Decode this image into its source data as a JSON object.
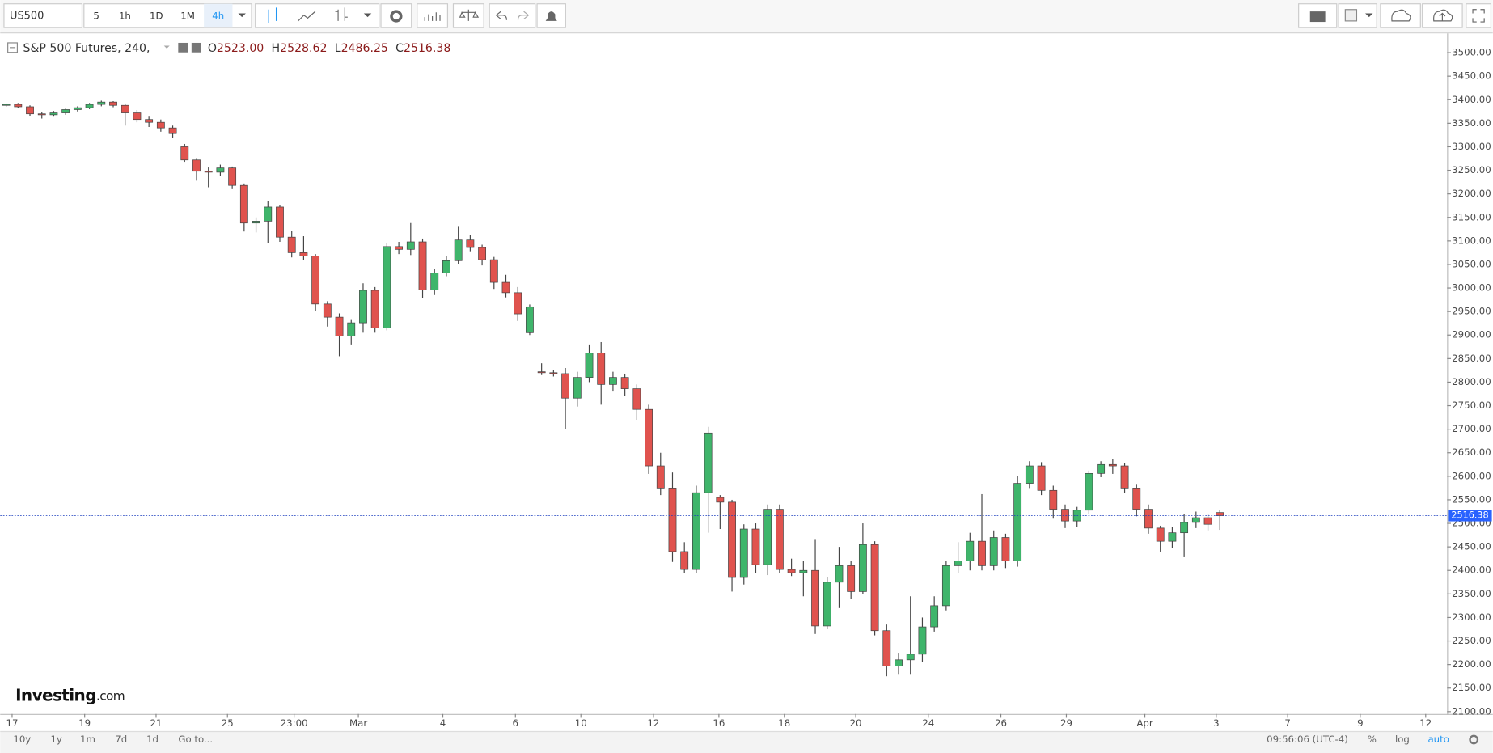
{
  "chart_data": {
    "type": "candlestick",
    "symbol": "US500",
    "intervals": [
      "5",
      "1h",
      "1D",
      "1M",
      "4h"
    ],
    "title": "S&P 500 Futures, 240,",
    "ohlc_keys": [
      "O",
      "H",
      "L",
      "C"
    ],
    "ohlc_labels": [
      "2523.00",
      "2528.62",
      "2486.25",
      "2516.38"
    ],
    "watermark": [
      "Investing",
      ".com"
    ],
    "ranges": [
      "10y",
      "1y",
      "1m",
      "7d",
      "1d",
      "Go to..."
    ],
    "clock": "09:56:06 (UTC-4)",
    "scale_options": [
      "%",
      "log",
      "auto"
    ],
    "up_color": "#3fb56b",
    "down_color": "#e0534e",
    "ylim": [
      2095,
      3541
    ],
    "yticks": [
      {
        "value": 2100,
        "label": "2100.00"
      },
      {
        "value": 2150,
        "label": "2150.00"
      },
      {
        "value": 2200,
        "label": "2200.00"
      },
      {
        "value": 2250,
        "label": "2250.00"
      },
      {
        "value": 2300,
        "label": "2300.00"
      },
      {
        "value": 2350,
        "label": "2350.00"
      },
      {
        "value": 2400,
        "label": "2400.00"
      },
      {
        "value": 2450,
        "label": "2450.00"
      },
      {
        "value": 2500,
        "label": "2500.00"
      },
      {
        "value": 2550,
        "label": "2550.00"
      },
      {
        "value": 2600,
        "label": "2600.00"
      },
      {
        "value": 2650,
        "label": "2650.00"
      },
      {
        "value": 2700,
        "label": "2700.00"
      },
      {
        "value": 2750,
        "label": "2750.00"
      },
      {
        "value": 2800,
        "label": "2800.00"
      },
      {
        "value": 2850,
        "label": "2850.00"
      },
      {
        "value": 2900,
        "label": "2900.00"
      },
      {
        "value": 2950,
        "label": "2950.00"
      },
      {
        "value": 3000,
        "label": "3000.00"
      },
      {
        "value": 3050,
        "label": "3050.00"
      },
      {
        "value": 3100,
        "label": "3100.00"
      },
      {
        "value": 3150,
        "label": "3150.00"
      },
      {
        "value": 3200,
        "label": "3200.00"
      },
      {
        "value": 3250,
        "label": "3250.00"
      },
      {
        "value": 3300,
        "label": "3300.00"
      },
      {
        "value": 3350,
        "label": "3350.00"
      },
      {
        "value": 3400,
        "label": "3400.00"
      },
      {
        "value": 3450,
        "label": "3450.00"
      },
      {
        "value": 3500,
        "label": "3500.00"
      }
    ],
    "xlim": [
      -0.5,
      121.1
    ],
    "xticks": [
      {
        "value": 0.5,
        "label": "17"
      },
      {
        "value": 6.6,
        "label": "19"
      },
      {
        "value": 12.6,
        "label": "21"
      },
      {
        "value": 18.6,
        "label": "25"
      },
      {
        "value": 24.2,
        "label": "23:00"
      },
      {
        "value": 29.6,
        "label": "Mar"
      },
      {
        "value": 36.7,
        "label": "4"
      },
      {
        "value": 42.8,
        "label": "6"
      },
      {
        "value": 48.3,
        "label": "10"
      },
      {
        "value": 54.4,
        "label": "12"
      },
      {
        "value": 59.9,
        "label": "16"
      },
      {
        "value": 65.4,
        "label": "18"
      },
      {
        "value": 71.4,
        "label": "20"
      },
      {
        "value": 77.5,
        "label": "24"
      },
      {
        "value": 83.6,
        "label": "26"
      },
      {
        "value": 89.1,
        "label": "29"
      },
      {
        "value": 95.7,
        "label": "Apr"
      },
      {
        "value": 101.7,
        "label": "3"
      },
      {
        "value": 107.7,
        "label": "7"
      },
      {
        "value": 113.8,
        "label": "9"
      },
      {
        "value": 119.3,
        "label": "12"
      }
    ],
    "ohlc": [
      [
        3388,
        3392,
        3385,
        3390
      ],
      [
        3390,
        3393,
        3382,
        3385
      ],
      [
        3385,
        3388,
        3366,
        3370
      ],
      [
        3370,
        3374,
        3360,
        3368
      ],
      [
        3368,
        3376,
        3364,
        3372
      ],
      [
        3372,
        3381,
        3368,
        3379
      ],
      [
        3379,
        3386,
        3375,
        3383
      ],
      [
        3383,
        3393,
        3380,
        3390
      ],
      [
        3390,
        3398,
        3386,
        3395
      ],
      [
        3395,
        3397,
        3384,
        3388
      ],
      [
        3388,
        3392,
        3345,
        3372
      ],
      [
        3372,
        3378,
        3352,
        3358
      ],
      [
        3358,
        3364,
        3342,
        3352
      ],
      [
        3352,
        3358,
        3332,
        3340
      ],
      [
        3340,
        3345,
        3318,
        3328
      ],
      [
        3300,
        3306,
        3268,
        3272
      ],
      [
        3272,
        3276,
        3228,
        3248
      ],
      [
        3248,
        3256,
        3214,
        3246
      ],
      [
        3246,
        3262,
        3238,
        3255
      ],
      [
        3255,
        3258,
        3210,
        3218
      ],
      [
        3218,
        3222,
        3120,
        3138
      ],
      [
        3138,
        3150,
        3118,
        3142
      ],
      [
        3142,
        3185,
        3095,
        3172
      ],
      [
        3172,
        3176,
        3098,
        3108
      ],
      [
        3108,
        3122,
        3065,
        3075
      ],
      [
        3075,
        3110,
        3060,
        3068
      ],
      [
        3068,
        3072,
        2952,
        2966
      ],
      [
        2966,
        2972,
        2918,
        2938
      ],
      [
        2938,
        2946,
        2855,
        2898
      ],
      [
        2898,
        2932,
        2880,
        2926
      ],
      [
        2926,
        3010,
        2905,
        2995
      ],
      [
        2995,
        3002,
        2905,
        2915
      ],
      [
        2915,
        3095,
        2910,
        3088
      ],
      [
        3088,
        3098,
        3072,
        3082
      ],
      [
        3082,
        3138,
        3070,
        3098
      ],
      [
        3098,
        3105,
        2978,
        2996
      ],
      [
        2996,
        3040,
        2985,
        3032
      ],
      [
        3032,
        3068,
        3025,
        3058
      ],
      [
        3058,
        3130,
        3050,
        3102
      ],
      [
        3102,
        3112,
        3078,
        3086
      ],
      [
        3086,
        3092,
        3048,
        3060
      ],
      [
        3060,
        3066,
        2998,
        3012
      ],
      [
        3012,
        3028,
        2980,
        2990
      ],
      [
        2990,
        3002,
        2930,
        2945
      ],
      [
        2905,
        2965,
        2900,
        2960
      ],
      [
        2822,
        2840,
        2815,
        2820
      ],
      [
        2820,
        2825,
        2812,
        2818
      ],
      [
        2818,
        2830,
        2700,
        2766
      ],
      [
        2766,
        2822,
        2748,
        2810
      ],
      [
        2810,
        2880,
        2800,
        2862
      ],
      [
        2862,
        2885,
        2752,
        2795
      ],
      [
        2795,
        2822,
        2780,
        2810
      ],
      [
        2810,
        2818,
        2770,
        2786
      ],
      [
        2786,
        2795,
        2720,
        2742
      ],
      [
        2742,
        2752,
        2605,
        2622
      ],
      [
        2622,
        2650,
        2560,
        2575
      ],
      [
        2575,
        2608,
        2418,
        2440
      ],
      [
        2440,
        2460,
        2395,
        2402
      ],
      [
        2402,
        2580,
        2395,
        2565
      ],
      [
        2565,
        2705,
        2480,
        2692
      ],
      [
        2555,
        2560,
        2488,
        2545
      ],
      [
        2545,
        2550,
        2355,
        2385
      ],
      [
        2385,
        2498,
        2370,
        2488
      ],
      [
        2488,
        2500,
        2395,
        2412
      ],
      [
        2412,
        2540,
        2390,
        2530
      ],
      [
        2530,
        2540,
        2395,
        2402
      ],
      [
        2402,
        2425,
        2388,
        2395
      ],
      [
        2395,
        2420,
        2345,
        2400
      ],
      [
        2400,
        2465,
        2265,
        2282
      ],
      [
        2282,
        2385,
        2275,
        2375
      ],
      [
        2375,
        2450,
        2320,
        2410
      ],
      [
        2410,
        2420,
        2340,
        2355
      ],
      [
        2355,
        2500,
        2350,
        2455
      ],
      [
        2455,
        2462,
        2262,
        2272
      ],
      [
        2272,
        2285,
        2175,
        2197
      ],
      [
        2197,
        2225,
        2180,
        2210
      ],
      [
        2210,
        2345,
        2180,
        2222
      ],
      [
        2222,
        2300,
        2205,
        2280
      ],
      [
        2280,
        2345,
        2270,
        2325
      ],
      [
        2325,
        2420,
        2315,
        2410
      ],
      [
        2410,
        2460,
        2395,
        2420
      ],
      [
        2420,
        2480,
        2400,
        2462
      ],
      [
        2462,
        2562,
        2400,
        2410
      ],
      [
        2410,
        2485,
        2400,
        2470
      ],
      [
        2470,
        2478,
        2405,
        2420
      ],
      [
        2420,
        2600,
        2408,
        2585
      ],
      [
        2585,
        2632,
        2575,
        2622
      ],
      [
        2622,
        2630,
        2560,
        2570
      ],
      [
        2570,
        2580,
        2510,
        2530
      ],
      [
        2530,
        2540,
        2490,
        2505
      ],
      [
        2505,
        2535,
        2492,
        2528
      ],
      [
        2528,
        2612,
        2520,
        2606
      ],
      [
        2606,
        2632,
        2598,
        2625
      ],
      [
        2625,
        2636,
        2605,
        2622
      ],
      [
        2622,
        2628,
        2565,
        2575
      ],
      [
        2575,
        2582,
        2515,
        2530
      ],
      [
        2530,
        2540,
        2478,
        2490
      ],
      [
        2490,
        2495,
        2440,
        2462
      ],
      [
        2462,
        2492,
        2448,
        2480
      ],
      [
        2480,
        2520,
        2428,
        2502
      ],
      [
        2502,
        2525,
        2490,
        2512
      ],
      [
        2512,
        2520,
        2485,
        2498
      ],
      [
        2523,
        2528.62,
        2486.25,
        2516.38
      ]
    ]
  }
}
